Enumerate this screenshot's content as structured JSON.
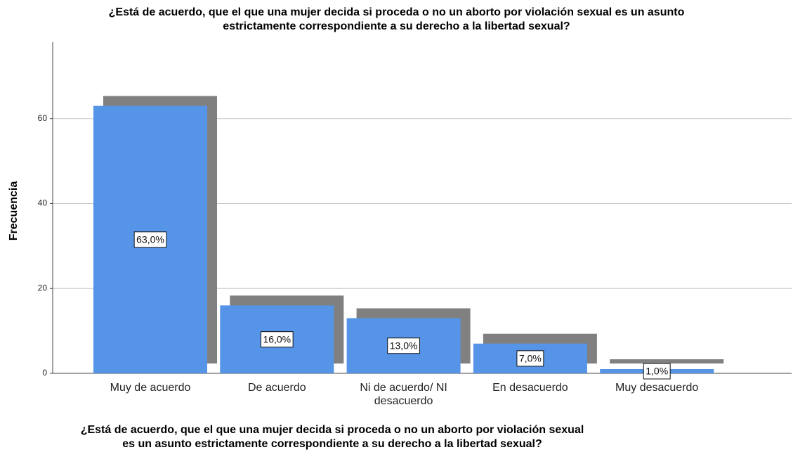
{
  "chart_data": {
    "type": "bar",
    "title": [
      "¿Está de acuerdo, que el que una mujer decida si proceda o no un aborto por violación sexual es un asunto",
      "estrictamente correspondiente a su derecho a la libertad sexual?"
    ],
    "x_label": [
      "¿Está de acuerdo, que el que una mujer decida si proceda o no un aborto por violación sexual",
      "es un asunto estrictamente correspondiente a su derecho a la libertad sexual?"
    ],
    "y_label": "Frecuencia",
    "categories": [
      "Muy de acuerdo",
      "De acuerdo",
      "Ni de acuerdo/ NI desacuerdo",
      "En desacuerdo",
      "Muy desacuerdo"
    ],
    "values": [
      63,
      16,
      13,
      7,
      1
    ],
    "value_labels": [
      "63,0%",
      "16,0%",
      "13,0%",
      "7,0%",
      "1,0%"
    ],
    "color": "#5594e6",
    "shadow_color": "#808080",
    "ylim": [
      0,
      78
    ],
    "yticks": [
      0,
      20,
      40,
      60
    ],
    "grid": true
  }
}
